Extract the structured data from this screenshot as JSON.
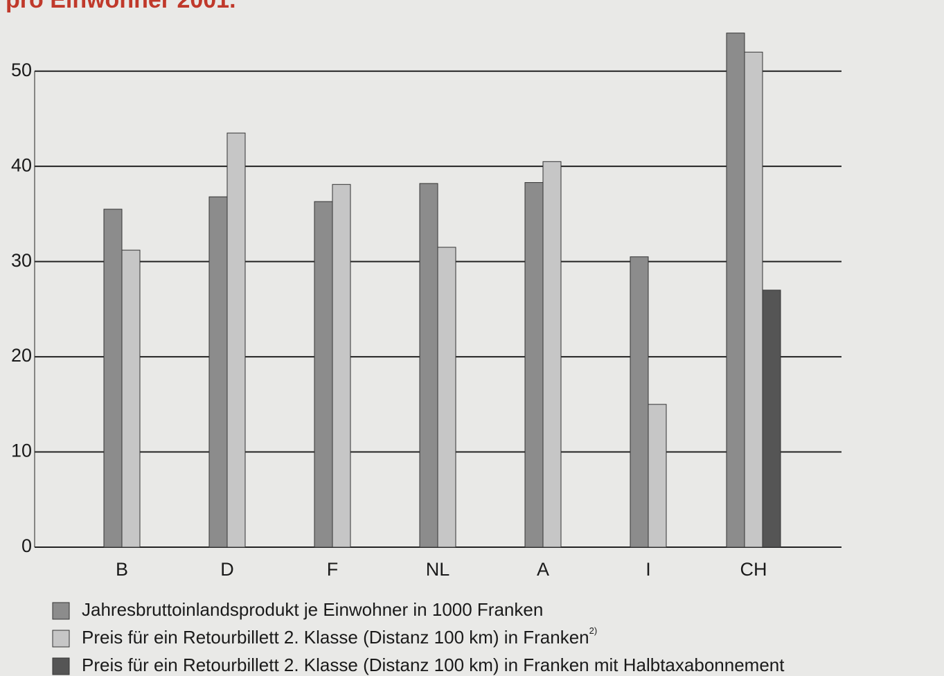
{
  "chart_data": {
    "type": "bar",
    "title": "pro Einwohner 2001.",
    "categories": [
      "B",
      "D",
      "F",
      "NL",
      "A",
      "I",
      "CH"
    ],
    "series": [
      {
        "name": "Jahresbruttoinlandsprodukt je Einwohner in 1000 Franken",
        "color": "#8c8c8c",
        "values": [
          35.5,
          36.8,
          36.3,
          38.2,
          38.3,
          30.5,
          54
        ]
      },
      {
        "name": "Preis für ein Retourbillett 2. Klasse (Distanz 100 km) in Franken",
        "footnote": "2)",
        "color": "#c6c6c6",
        "values": [
          31.2,
          43.5,
          38.1,
          31.5,
          40.5,
          15,
          52
        ]
      },
      {
        "name": "Preis für ein Retourbillett 2. Klasse (Distanz 100 km) in Franken mit Halbtaxabonnement",
        "color": "#555555",
        "values": [
          null,
          null,
          null,
          null,
          null,
          null,
          27
        ]
      }
    ],
    "ylim": [
      0,
      55
    ],
    "yticks": [
      0,
      10,
      20,
      30,
      40,
      50
    ],
    "grid": true
  }
}
